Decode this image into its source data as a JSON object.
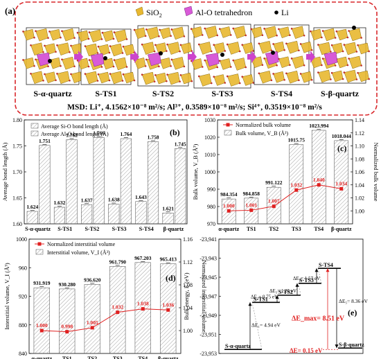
{
  "panel_a": {
    "label": "(a)",
    "legend": {
      "sio2": "SiO",
      "sio2_sub": "2",
      "alo": "Al-O tetrahedron",
      "li": "Li"
    },
    "stages": [
      "S-α-quartz",
      "S-TS1",
      "S-TS2",
      "S-TS3",
      "S-TS4",
      "S-β-quartz"
    ],
    "msd_text": "MSD: Li⁺, 4.1562×10⁻⁸ m²/s; Al³⁺, 0.3589×10⁻⁸ m²/s; Si⁴⁺, 0.3519×10⁻⁸ m²/s"
  },
  "colors": {
    "sio2": "#e8b830",
    "alo": "#d85ad8",
    "arrow": "#cc44cc",
    "red": "#e02020",
    "dash_border": "#d9262a"
  },
  "chart_data": [
    {
      "id": "b",
      "type": "bar",
      "label": "(b)",
      "ylabel": "Average bond length (Å)",
      "categories": [
        "S-α-quartz",
        "S-TS1",
        "S-TS2",
        "S-TS3",
        "S-TS4",
        "β-quartz"
      ],
      "ylim": [
        1.6,
        1.8
      ],
      "yticks": [
        "1.60",
        "1.65",
        "1.70",
        "1.75",
        "1.80"
      ],
      "series": [
        {
          "name": "Average Si-O bond length (Å)",
          "values": [
            1.624,
            1.632,
            1.637,
            1.638,
            1.643,
            1.621
          ],
          "labels": [
            "1.624",
            "1.632",
            "1.637",
            "1.638",
            "1.643",
            "1.621"
          ]
        },
        {
          "name": "Average Al-O bond length (Å)",
          "values": [
            1.751,
            1.762,
            1.766,
            1.764,
            1.758,
            1.745
          ],
          "labels": [
            "1.751",
            "1.762",
            "1.766",
            "1.764",
            "1.758",
            "1.745"
          ]
        }
      ]
    },
    {
      "id": "c",
      "type": "bar",
      "label": "(c)",
      "ylabel": "Bulk volume, V_B (Å³)",
      "y2label": "Normalized bulk volume",
      "categories": [
        "α-quartz",
        "TS1",
        "TS2",
        "TS3",
        "TS4",
        "β-quartz"
      ],
      "ylim": [
        970,
        1030
      ],
      "yticks": [
        "970",
        "980",
        "990",
        "1000",
        "1010",
        "1020",
        "1030"
      ],
      "y2lim": [
        0.98,
        1.14
      ],
      "y2ticks": [
        "1.00",
        "1.02",
        "1.04",
        "1.06",
        "1.08",
        "1.10",
        "1.12",
        "1.14"
      ],
      "series": [
        {
          "name": "Bulk volume, V_B (Å³)",
          "values": [
            984.354,
            984.858,
            991.122,
            1015.75,
            1023.994,
            1018.044
          ],
          "labels": [
            "984.354",
            "984.858",
            "991.122",
            "1015.75",
            "1023.994",
            "1018.044"
          ]
        },
        {
          "name": "Normalized bulk volume",
          "values": [
            1.0,
            1.001,
            1.007,
            1.032,
            1.04,
            1.034
          ],
          "labels": [
            "1.000",
            "1.001",
            "1.007",
            "1.032",
            "1.040",
            "1.034"
          ]
        }
      ]
    },
    {
      "id": "d",
      "type": "bar",
      "label": "(d)",
      "ylabel": "Interstitial volume, V_I (Å³)",
      "y2label": "Normalized interstitial volume",
      "categories": [
        "α-quartz",
        "TS1",
        "TS2",
        "TS3",
        "TS4",
        "β-quartz"
      ],
      "ylim": [
        840,
        1000
      ],
      "yticks": [
        "840",
        "880",
        "920",
        "960",
        "1000"
      ],
      "y2lim": [
        0.96,
        1.16
      ],
      "y2ticks": [
        "1.00",
        "1.04",
        "1.08",
        "1.12",
        "1.16"
      ],
      "series": [
        {
          "name": "Interstitial volume, V_I (Å³)",
          "values": [
            931.919,
            930.28,
            936.62,
            961.79,
            967.203,
            965.413
          ],
          "labels": [
            "931.919",
            "930.280",
            "936.620",
            "961.790",
            "967.203",
            "965.413"
          ]
        },
        {
          "name": "Normalized interstitial volume",
          "values": [
            1.0,
            0.998,
            1.005,
            1.032,
            1.038,
            1.036
          ],
          "labels": [
            "1.000",
            "0.998",
            "1.005",
            "1.032",
            "1.038",
            "1.036"
          ]
        }
      ]
    },
    {
      "id": "e",
      "type": "line",
      "label": "(e)",
      "ylabel": "Bulk energy, E (eV)",
      "ylim": [
        -23953,
        -23941
      ],
      "yticks": [
        "-23,941",
        "-23,943",
        "-23,945",
        "-23,947",
        "-23,949",
        "-23,951",
        "-23,953"
      ],
      "levels": [
        {
          "name": "S-α-quartz",
          "energy": -23952.58
        },
        {
          "name": "S-TS1",
          "energy": -23947.64
        },
        {
          "name": "S-TS2",
          "energy": -23946.89
        },
        {
          "name": "S-TS3",
          "energy": -23945.64
        },
        {
          "name": "S-TS4",
          "energy": -23944.07
        },
        {
          "name": "S-β-quartz",
          "energy": -23952.43
        }
      ],
      "annotations": {
        "e1": "ΔE₁= 4.94 eV",
        "e2": "ΔE₂= 0.75 eV",
        "e3": "ΔE₃= 1.25 eV",
        "e4": "ΔE₄= 1.57 eV",
        "e5": "ΔE₅= 8.36 eV",
        "emax": "ΔE_max= 8.51 eV",
        "de": "ΔE= 0.15 eV"
      }
    }
  ]
}
